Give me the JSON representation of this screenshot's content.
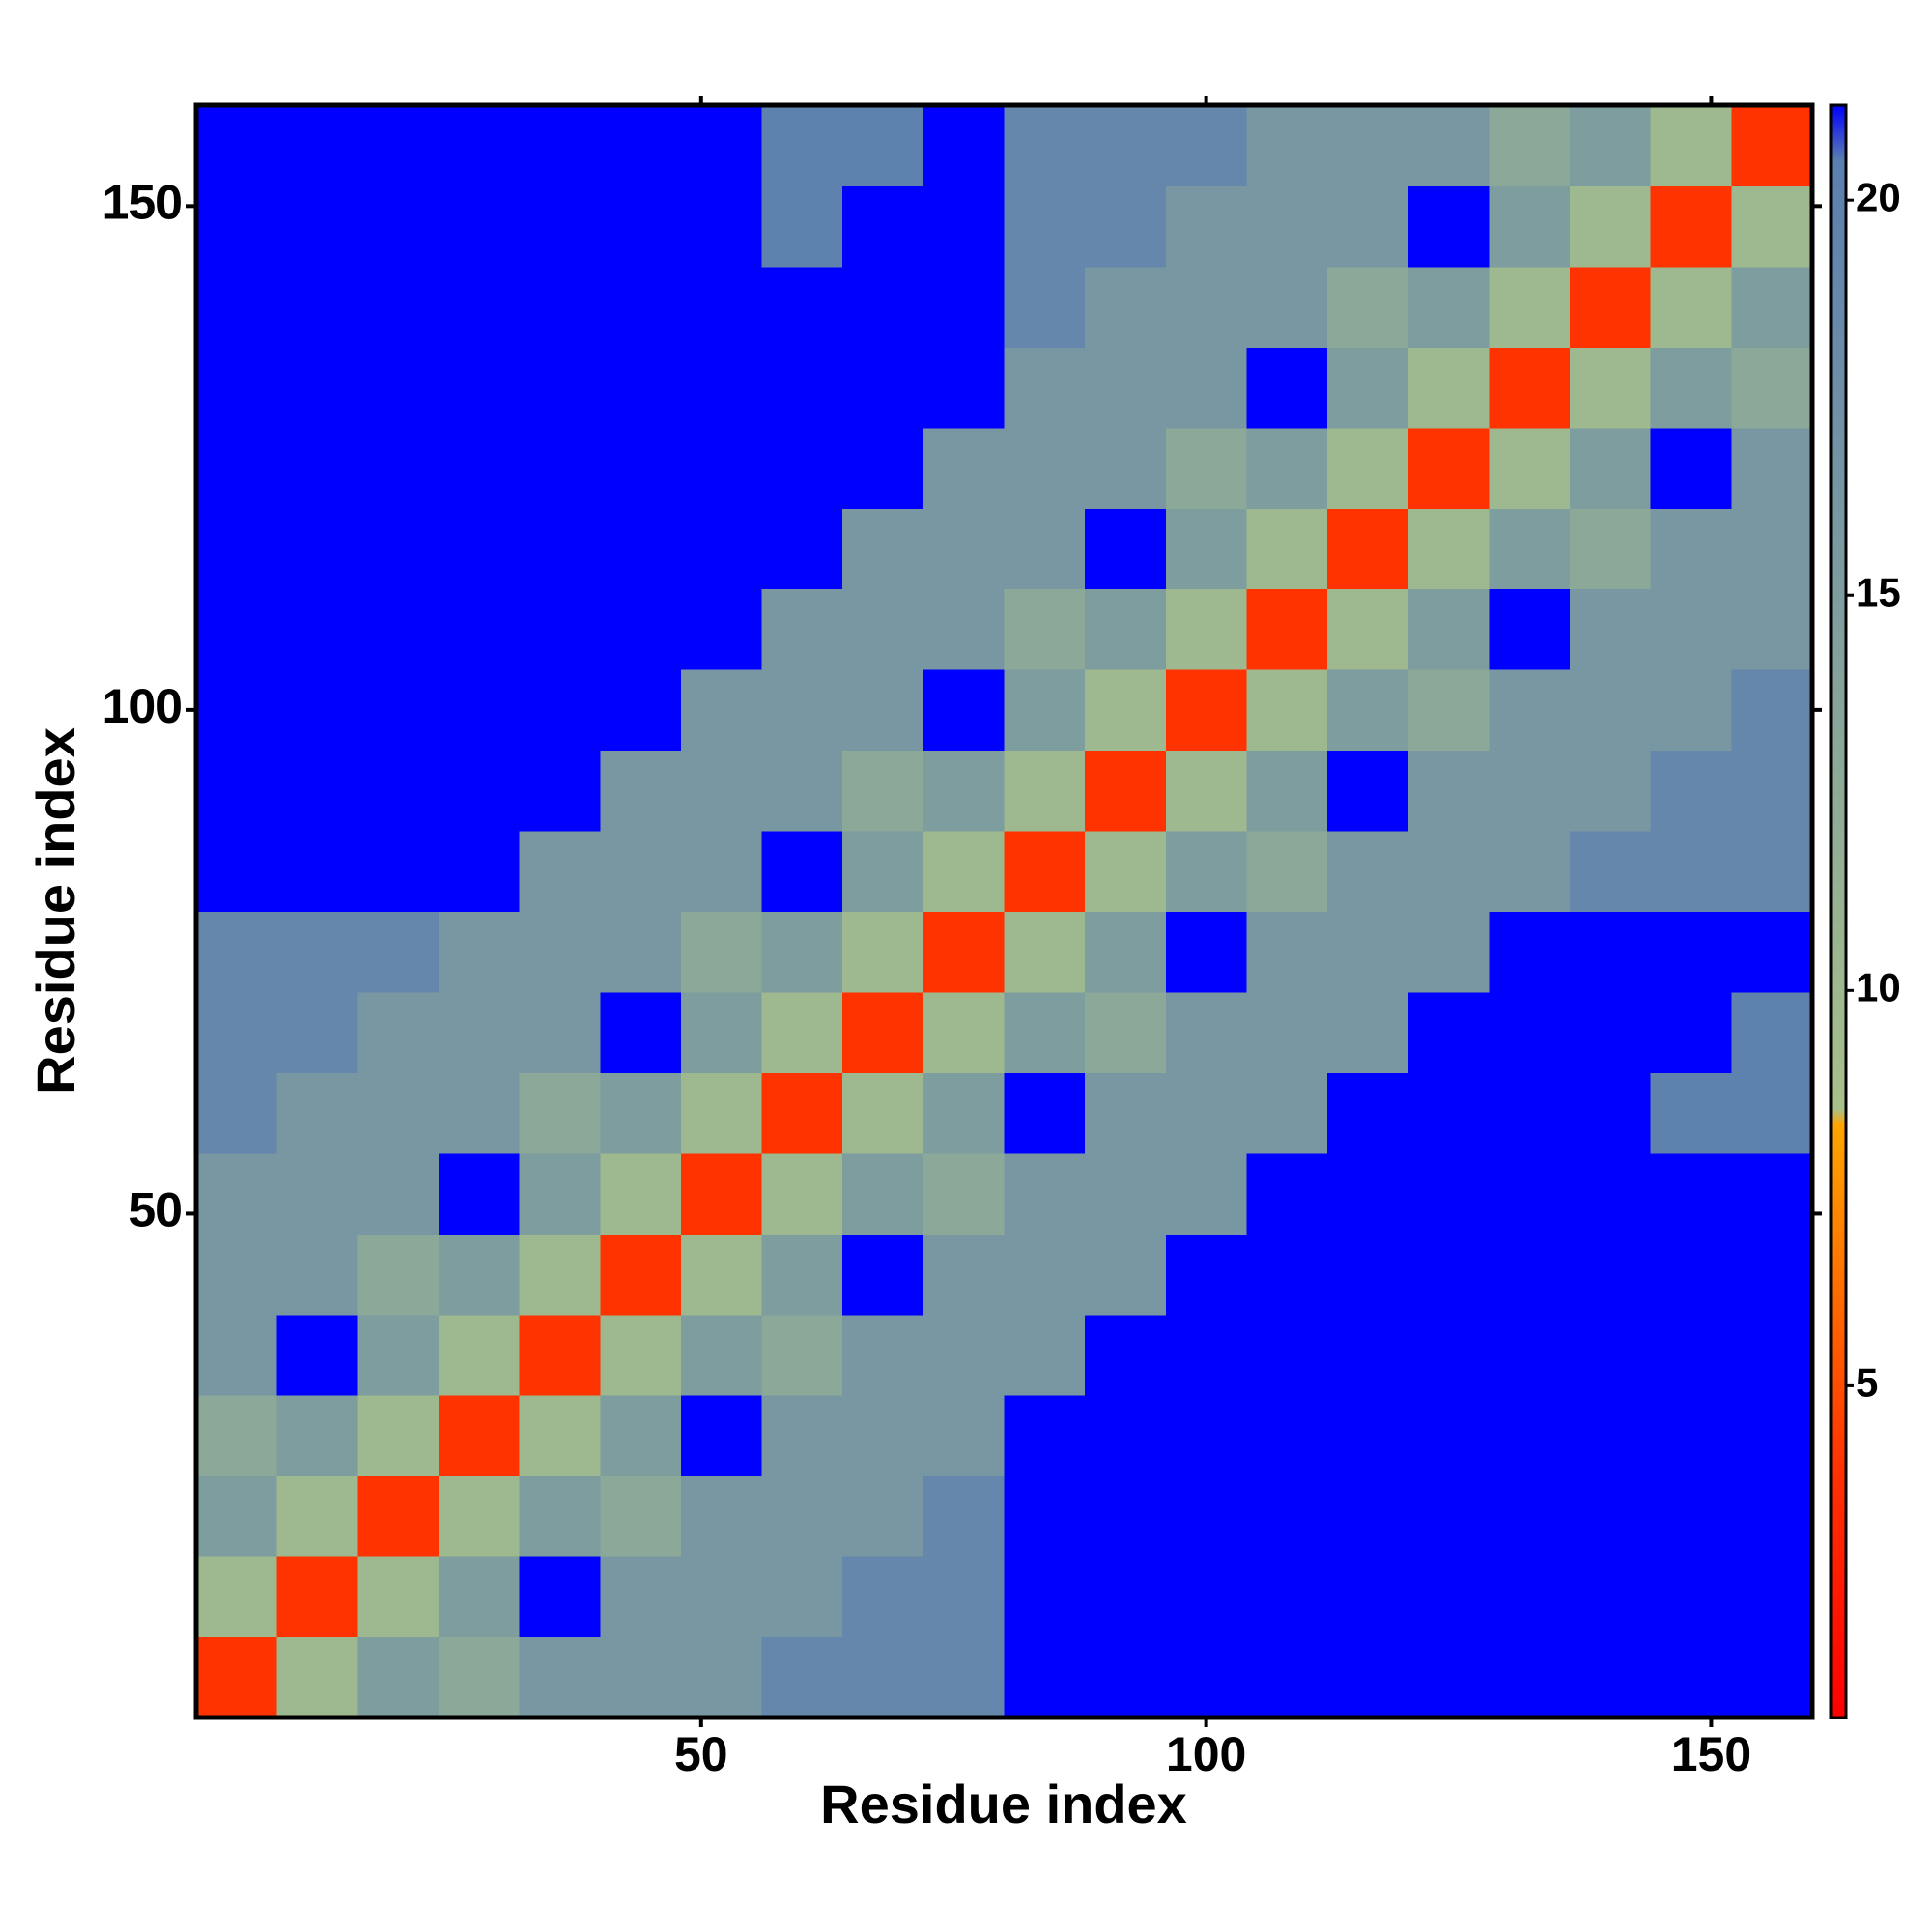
{
  "chart_data": {
    "type": "heatmap",
    "xlabel": "Residue index",
    "ylabel": "Residue index",
    "xbins": [
      0,
      8,
      16,
      24,
      32,
      40,
      48,
      56,
      64,
      72,
      80,
      88,
      96,
      104,
      112,
      120,
      128,
      136,
      144,
      152,
      160
    ],
    "ybins": [
      0,
      8,
      16,
      24,
      32,
      40,
      48,
      56,
      64,
      72,
      80,
      88,
      96,
      104,
      112,
      120,
      128,
      136,
      144,
      152,
      160
    ],
    "xlim": [
      0,
      160
    ],
    "ylim": [
      0,
      160
    ],
    "xticks": [
      50,
      100,
      150
    ],
    "yticks": [
      50,
      100,
      150
    ],
    "zlim": [
      0.8,
      21.2
    ],
    "zticks": [
      5,
      10,
      15,
      20
    ],
    "colorscale": [
      [
        0.8,
        "#ff0000"
      ],
      [
        4,
        "#ff3300"
      ],
      [
        8.3,
        "#ffa500"
      ],
      [
        8.5,
        "#a8c08a"
      ],
      [
        20.5,
        "#5b7fb0"
      ],
      [
        21.2,
        "#0000ff"
      ]
    ],
    "z": [
      [
        4,
        10,
        15,
        13,
        16,
        16,
        16,
        19,
        19,
        19,
        25,
        25,
        25,
        25,
        25,
        25,
        25,
        25,
        25,
        25
      ],
      [
        10,
        4,
        10,
        15,
        25,
        16,
        16,
        16,
        19,
        19,
        25,
        25,
        25,
        25,
        25,
        25,
        25,
        25,
        25,
        25
      ],
      [
        15,
        10,
        4,
        10,
        15,
        13,
        16,
        16,
        16,
        19,
        25,
        25,
        25,
        25,
        25,
        25,
        25,
        25,
        25,
        25
      ],
      [
        13,
        15,
        10,
        4,
        10,
        15,
        25,
        16,
        16,
        16,
        25,
        25,
        25,
        25,
        25,
        25,
        25,
        25,
        25,
        25
      ],
      [
        16,
        25,
        15,
        10,
        4,
        10,
        15,
        13,
        16,
        16,
        16,
        25,
        25,
        25,
        25,
        25,
        25,
        25,
        25,
        25
      ],
      [
        16,
        16,
        13,
        15,
        10,
        4,
        10,
        15,
        25,
        16,
        16,
        16,
        25,
        25,
        25,
        25,
        25,
        25,
        25,
        25
      ],
      [
        16,
        16,
        16,
        25,
        15,
        10,
        4,
        10,
        15,
        13,
        16,
        16,
        16,
        25,
        25,
        25,
        25,
        25,
        25,
        25
      ],
      [
        19,
        16,
        16,
        16,
        13,
        15,
        10,
        4,
        10,
        15,
        25,
        16,
        16,
        16,
        25,
        25,
        25,
        25,
        20,
        20
      ],
      [
        19,
        19,
        16,
        16,
        16,
        25,
        15,
        10,
        4,
        10,
        15,
        13,
        16,
        16,
        16,
        25,
        25,
        25,
        25,
        20
      ],
      [
        19,
        19,
        19,
        16,
        16,
        16,
        13,
        15,
        10,
        4,
        10,
        15,
        25,
        16,
        16,
        16,
        25,
        25,
        25,
        25
      ],
      [
        25,
        25,
        25,
        25,
        16,
        16,
        16,
        25,
        15,
        10,
        4,
        10,
        15,
        13,
        16,
        16,
        16,
        19,
        19,
        19
      ],
      [
        25,
        25,
        25,
        25,
        25,
        16,
        16,
        16,
        13,
        15,
        10,
        4,
        10,
        15,
        25,
        16,
        16,
        16,
        19,
        19
      ],
      [
        25,
        25,
        25,
        25,
        25,
        25,
        16,
        16,
        16,
        25,
        15,
        10,
        4,
        10,
        15,
        13,
        16,
        16,
        16,
        19
      ],
      [
        25,
        25,
        25,
        25,
        25,
        25,
        25,
        16,
        16,
        16,
        13,
        15,
        10,
        4,
        10,
        15,
        25,
        16,
        16,
        16
      ],
      [
        25,
        25,
        25,
        25,
        25,
        25,
        25,
        25,
        16,
        16,
        16,
        25,
        15,
        10,
        4,
        10,
        15,
        13,
        16,
        16
      ],
      [
        25,
        25,
        25,
        25,
        25,
        25,
        25,
        25,
        25,
        16,
        16,
        16,
        13,
        15,
        10,
        4,
        10,
        15,
        25,
        16
      ],
      [
        25,
        25,
        25,
        25,
        25,
        25,
        25,
        25,
        25,
        25,
        16,
        16,
        16,
        25,
        15,
        10,
        4,
        10,
        15,
        13
      ],
      [
        25,
        25,
        25,
        25,
        25,
        25,
        25,
        25,
        25,
        25,
        19,
        16,
        16,
        16,
        13,
        15,
        10,
        4,
        10,
        15
      ],
      [
        25,
        25,
        25,
        25,
        25,
        25,
        25,
        20,
        25,
        25,
        19,
        19,
        16,
        16,
        16,
        25,
        15,
        10,
        4,
        10
      ],
      [
        25,
        25,
        25,
        25,
        25,
        25,
        25,
        20,
        20,
        25,
        19,
        19,
        19,
        16,
        16,
        16,
        13,
        15,
        10,
        4
      ]
    ]
  }
}
